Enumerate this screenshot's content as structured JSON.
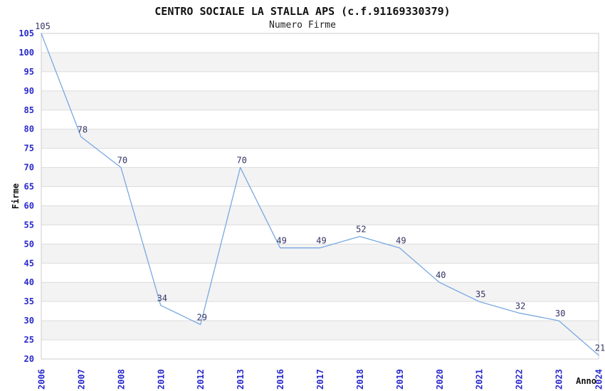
{
  "chart_data": {
    "type": "line",
    "title": "CENTRO SOCIALE LA STALLA APS (c.f.91169330379)",
    "subtitle": "Numero Firme",
    "xlabel": "Anno",
    "ylabel": "Firme",
    "categories": [
      "2006",
      "2007",
      "2008",
      "2010",
      "2012",
      "2013",
      "2016",
      "2017",
      "2018",
      "2019",
      "2020",
      "2021",
      "2022",
      "2023",
      "2024"
    ],
    "values": [
      105,
      78,
      70,
      34,
      29,
      70,
      49,
      49,
      52,
      49,
      40,
      35,
      32,
      30,
      21
    ],
    "ylim": [
      20,
      105
    ],
    "ytick_step": 5,
    "grid": true,
    "banded_background": true,
    "data_labels_visible": true,
    "legend": "none",
    "colors": {
      "line": "#79a8e2",
      "tick_label": "#2828cc",
      "point_label": "#333366",
      "band": "#f3f3f3",
      "grid_line": "#dcdcdc",
      "frame": "#cccccc",
      "title_text": "#111111"
    }
  }
}
